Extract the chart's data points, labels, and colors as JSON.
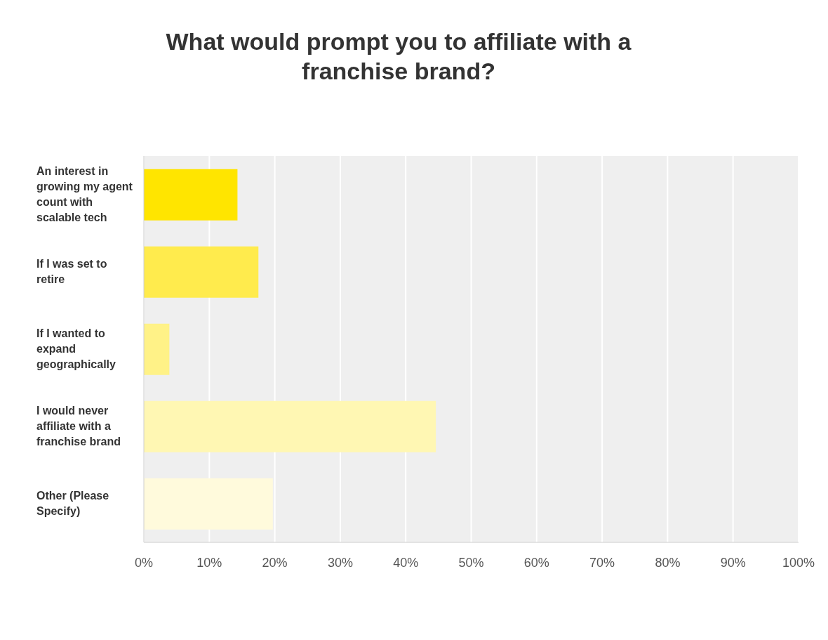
{
  "chart_data": {
    "type": "bar",
    "orientation": "horizontal",
    "title": "What would prompt you to affiliate with a franchise brand?",
    "categories": [
      "An interest in growing my agent count with scalable tech",
      "If I was set to retire",
      "If I wanted to expand geographically",
      "I would never affiliate with a franchise brand",
      "Other (Please Specify)"
    ],
    "values": [
      14.3,
      17.5,
      3.9,
      44.6,
      19.7
    ],
    "colors": [
      "#ffe500",
      "#ffeb4d",
      "#fff287",
      "#fff7b3",
      "#fffadc"
    ],
    "xlim": [
      0,
      100
    ],
    "xticks": [
      {
        "value": 0,
        "label": "0%"
      },
      {
        "value": 10,
        "label": "10%"
      },
      {
        "value": 20,
        "label": "20%"
      },
      {
        "value": 30,
        "label": "30%"
      },
      {
        "value": 40,
        "label": "40%"
      },
      {
        "value": 50,
        "label": "50%"
      },
      {
        "value": 60,
        "label": "60%"
      },
      {
        "value": 70,
        "label": "70%"
      },
      {
        "value": 80,
        "label": "80%"
      },
      {
        "value": 90,
        "label": "90%"
      },
      {
        "value": 100,
        "label": "100%"
      }
    ],
    "grid": "x"
  }
}
